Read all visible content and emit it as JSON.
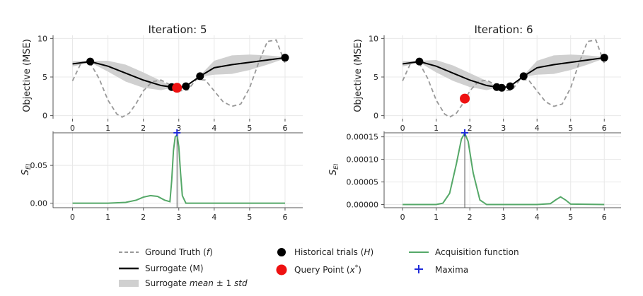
{
  "chart_data": [
    {
      "type": "line",
      "title": "Iteration: 5",
      "ylabel": "Objective (MSE)",
      "xlim": [
        -0.55,
        6.5
      ],
      "ylim": [
        -0.4,
        10.4
      ],
      "xticks": [
        "0",
        "1",
        "2",
        "3",
        "4",
        "5",
        "6"
      ],
      "yticks": [
        "0",
        "5",
        "10"
      ],
      "ground_truth": {
        "x": [
          0,
          0.25,
          0.5,
          0.75,
          1,
          1.25,
          1.4,
          1.6,
          1.8,
          2,
          2.25,
          2.5,
          2.75,
          3,
          3.25,
          3.5,
          3.75,
          4,
          4.25,
          4.5,
          4.75,
          5,
          5.25,
          5.5,
          5.75,
          6
        ],
        "y": [
          4.5,
          6.9,
          6.8,
          4.8,
          2.0,
          0.2,
          -0.2,
          0.3,
          1.6,
          3.2,
          4.4,
          4.6,
          4.0,
          3.2,
          3.3,
          4.7,
          4.6,
          3.2,
          1.8,
          1.2,
          1.5,
          3.6,
          6.8,
          9.6,
          9.8,
          6.8
        ]
      },
      "surrogate": {
        "x": [
          0,
          0.5,
          1,
          1.5,
          2,
          2.5,
          2.8,
          2.95,
          3.2,
          3.6,
          4,
          4.5,
          5,
          5.5,
          6
        ],
        "mean": [
          6.7,
          7.0,
          6.4,
          5.5,
          4.6,
          3.9,
          3.7,
          3.6,
          3.8,
          5.1,
          6.2,
          6.6,
          6.9,
          7.2,
          7.5
        ],
        "std": [
          0.35,
          0.1,
          0.7,
          1.1,
          1.0,
          0.6,
          0.1,
          0.15,
          0.1,
          0.1,
          0.9,
          1.2,
          1.0,
          0.6,
          0.1
        ]
      },
      "historical_trials": {
        "x": [
          0.5,
          2.8,
          3.2,
          3.6,
          6
        ],
        "y": [
          7.0,
          3.7,
          3.8,
          5.1,
          7.5
        ]
      },
      "query_point": {
        "x": [
          2.95
        ],
        "y": [
          3.6
        ]
      }
    },
    {
      "type": "line",
      "title": "Iteration: 6",
      "ylabel": "Objective (MSE)",
      "xlim": [
        -0.55,
        6.5
      ],
      "ylim": [
        -0.4,
        10.4
      ],
      "xticks": [
        "0",
        "1",
        "2",
        "3",
        "4",
        "5",
        "6"
      ],
      "yticks": [
        "0",
        "5",
        "10"
      ],
      "ground_truth": {
        "x": [
          0,
          0.25,
          0.5,
          0.75,
          1,
          1.25,
          1.4,
          1.6,
          1.8,
          2,
          2.25,
          2.5,
          2.75,
          3,
          3.25,
          3.5,
          3.75,
          4,
          4.25,
          4.5,
          4.75,
          5,
          5.25,
          5.5,
          5.75,
          6
        ],
        "y": [
          4.5,
          6.9,
          6.8,
          4.8,
          2.0,
          0.2,
          -0.2,
          0.3,
          1.6,
          3.2,
          4.4,
          4.6,
          4.0,
          3.2,
          3.3,
          4.7,
          4.6,
          3.2,
          1.8,
          1.2,
          1.5,
          3.6,
          6.8,
          9.6,
          9.8,
          6.8
        ]
      },
      "surrogate": {
        "x": [
          0,
          0.5,
          1,
          1.5,
          2,
          2.5,
          2.8,
          2.95,
          3.2,
          3.6,
          4,
          4.5,
          5,
          5.5,
          6
        ],
        "mean": [
          6.7,
          7.0,
          6.4,
          5.5,
          4.6,
          3.9,
          3.7,
          3.6,
          3.8,
          5.1,
          6.2,
          6.6,
          6.9,
          7.2,
          7.5
        ],
        "std": [
          0.35,
          0.1,
          0.8,
          1.0,
          0.9,
          0.6,
          0.1,
          0.1,
          0.1,
          0.1,
          0.9,
          1.2,
          1.0,
          0.6,
          0.1
        ]
      },
      "historical_trials": {
        "x": [
          0.5,
          2.8,
          2.95,
          3.2,
          3.6,
          6
        ],
        "y": [
          7.0,
          3.7,
          3.6,
          3.8,
          5.1,
          7.5
        ]
      },
      "query_point": {
        "x": [
          1.85
        ],
        "y": [
          2.2
        ]
      }
    },
    {
      "type": "line",
      "ylabel": "S_EI",
      "xlim": [
        -0.55,
        6.5
      ],
      "ylim": [
        -0.006,
        0.095
      ],
      "xticks": [
        "0",
        "1",
        "2",
        "3",
        "4",
        "5",
        "6"
      ],
      "yticks": [
        "0.00",
        "0.05"
      ],
      "ytick_values": [
        0,
        0.05
      ],
      "acquisition": {
        "x": [
          0,
          1,
          1.5,
          1.8,
          2.0,
          2.2,
          2.4,
          2.6,
          2.75,
          2.8,
          2.85,
          2.9,
          2.95,
          3.0,
          3.05,
          3.1,
          3.2,
          4,
          5,
          6
        ],
        "y": [
          0,
          0,
          0.001,
          0.004,
          0.008,
          0.01,
          0.009,
          0.004,
          0.002,
          0.03,
          0.07,
          0.088,
          0.09,
          0.075,
          0.04,
          0.01,
          0,
          0,
          0,
          0
        ]
      },
      "maxima": {
        "x": [
          2.95
        ],
        "y": [
          0.09
        ]
      }
    },
    {
      "type": "line",
      "ylabel": "S_EI",
      "xlim": [
        -0.55,
        6.5
      ],
      "ylim": [
        -7e-06,
        0.000162
      ],
      "xticks": [
        "0",
        "1",
        "2",
        "3",
        "4",
        "5",
        "6"
      ],
      "yticks": [
        "0.00000",
        "0.00005",
        "0.00010",
        "0.00015"
      ],
      "ytick_values": [
        0,
        5e-05,
        0.0001,
        0.00015
      ],
      "acquisition": {
        "x": [
          0,
          1,
          1.2,
          1.4,
          1.6,
          1.75,
          1.85,
          1.95,
          2.1,
          2.3,
          2.5,
          3,
          4,
          4.4,
          4.55,
          4.7,
          4.85,
          5.0,
          6
        ],
        "y": [
          0,
          0,
          3e-06,
          2.5e-05,
          9e-05,
          0.000145,
          0.000158,
          0.00014,
          7e-05,
          1e-05,
          0,
          0,
          0,
          2e-06,
          1e-05,
          1.7e-05,
          1e-05,
          1e-06,
          0
        ]
      },
      "maxima": {
        "x": [
          1.85
        ],
        "y": [
          0.000158
        ]
      }
    }
  ],
  "legend": [
    {
      "label": "Ground Truth (f)",
      "marker": "dashed-line",
      "color": "#999999"
    },
    {
      "label": "Surrogate (M)",
      "marker": "solid-line",
      "color": "#000000"
    },
    {
      "label": "Surrogate mean ± 1 std",
      "marker": "band",
      "color": "#d0d0d0"
    },
    {
      "label": "Historical trials (H)",
      "marker": "black-dot",
      "color": "#000000"
    },
    {
      "label": "Query Point (x*)",
      "marker": "red-dot",
      "color": "#ee1111"
    },
    {
      "label": "Acquisition function",
      "marker": "green-line",
      "color": "#55a868"
    },
    {
      "label": "Maxima",
      "marker": "blue-plus",
      "color": "#1f2bd9"
    }
  ],
  "colors": {
    "ground_truth": "#999999",
    "surrogate": "#000000",
    "band": "#d0d0d0",
    "query": "#ee1111",
    "acquisition": "#55a868",
    "maxima": "#1f2bd9",
    "grid": "#e8e8e8"
  }
}
